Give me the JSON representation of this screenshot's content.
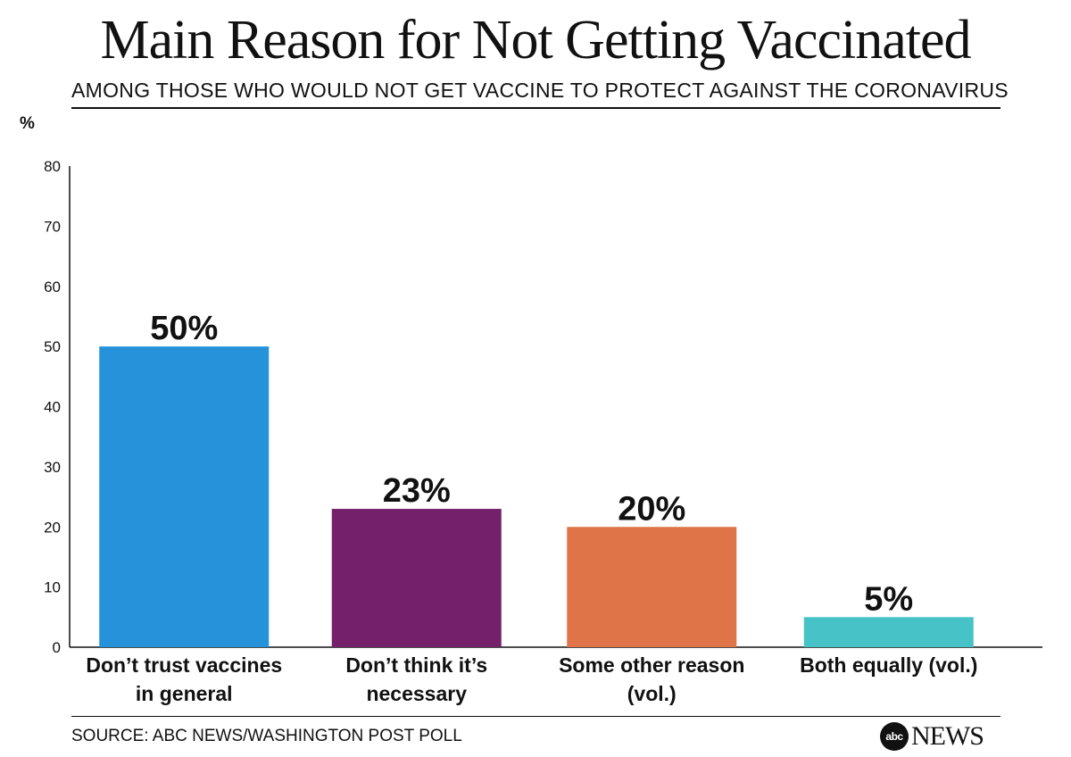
{
  "header": {
    "title": "Main Reason for Not Getting Vaccinated",
    "subtitle": "AMONG THOSE WHO WOULD NOT GET VACCINE TO PROTECT AGAINST THE CORONAVIRUS"
  },
  "footer": {
    "source": "SOURCE: ABC NEWS/WASHINGTON POST POLL",
    "logo_mark": "abc",
    "logo_word": "NEWS"
  },
  "chart_data": {
    "type": "bar",
    "title": "Main Reason for Not Getting Vaccinated",
    "subtitle": "AMONG THOSE WHO WOULD NOT GET VACCINE TO PROTECT AGAINST THE CORONAVIRUS",
    "ylabel": "%",
    "xlabel": "",
    "ylim": [
      0,
      80
    ],
    "yticks": [
      0,
      10,
      20,
      30,
      40,
      50,
      60,
      70,
      80
    ],
    "grid": false,
    "categories": [
      [
        "Don’t trust vaccines",
        "in general"
      ],
      [
        "Don’t think it’s",
        "necessary"
      ],
      [
        "Some other reason",
        "(vol.)"
      ],
      [
        "Both equally (vol.)"
      ]
    ],
    "values": [
      50,
      23,
      20,
      5
    ],
    "value_labels": [
      "50%",
      "23%",
      "20%",
      "5%"
    ],
    "colors": [
      "#2592d9",
      "#74206b",
      "#df7449",
      "#47c3c7"
    ]
  }
}
